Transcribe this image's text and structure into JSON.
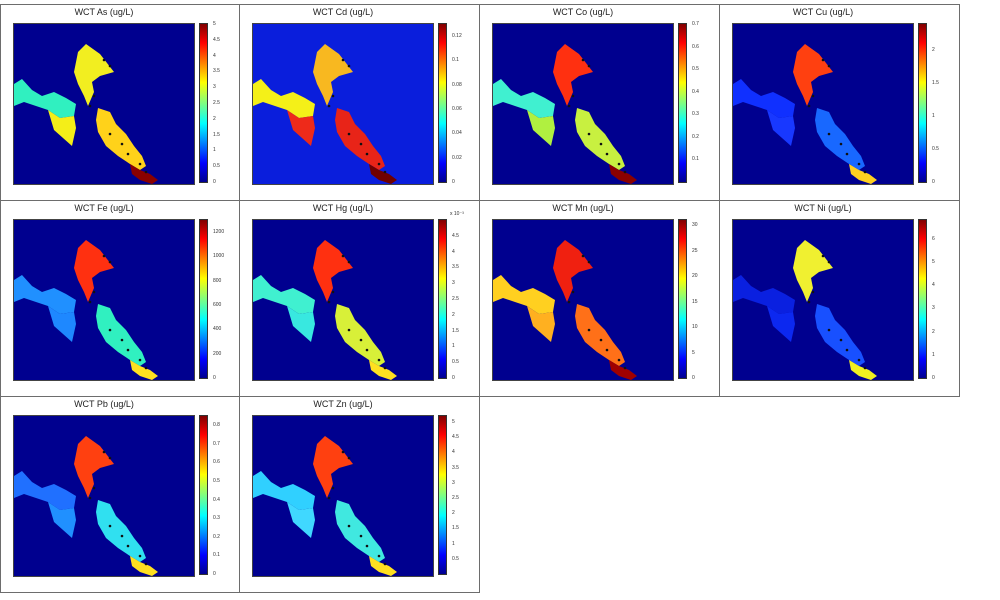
{
  "chart_data": [
    {
      "type": "heatmap",
      "title": "WCT As (ug/L)",
      "clim": [
        0,
        5
      ],
      "ticks": [
        "0",
        "0.5",
        "1",
        "1.5",
        "2",
        "2.5",
        "3",
        "3.5",
        "4",
        "4.5",
        "5"
      ],
      "tick_values": [
        0,
        0.5,
        1,
        1.5,
        2,
        2.5,
        3,
        3.5,
        4,
        4.5,
        5
      ],
      "tick_exponent": "",
      "background": "#00008f",
      "zone_colors": {
        "west_channel": "#30f0c0",
        "west_lobe": "#f4ee18",
        "north_basin": "#f2ee20",
        "south_basin": "#ffd21a",
        "outlet": "#8a0000"
      }
    },
    {
      "type": "heatmap",
      "title": "WCT Cd (ug/L)",
      "clim": [
        0,
        0.13
      ],
      "ticks": [
        "0",
        "0.02",
        "0.04",
        "0.06",
        "0.08",
        "0.1",
        "0.12"
      ],
      "tick_values": [
        0,
        0.02,
        0.04,
        0.06,
        0.08,
        0.1,
        0.12
      ],
      "tick_exponent": "",
      "background": "#0a1edc",
      "zone_colors": {
        "west_channel": "#f4f018",
        "west_lobe": "#ee2a1a",
        "north_basin": "#f8b820",
        "south_basin": "#e82418",
        "outlet": "#700000"
      }
    },
    {
      "type": "heatmap",
      "title": "WCT Co (ug/L)",
      "clim": [
        0,
        0.7
      ],
      "ticks": [
        "0.1",
        "0.2",
        "0.3",
        "0.4",
        "0.5",
        "0.6",
        "0.7"
      ],
      "tick_values": [
        0.1,
        0.2,
        0.3,
        0.4,
        0.5,
        0.6,
        0.7
      ],
      "tick_exponent": "",
      "background": "#00008f",
      "zone_colors": {
        "west_channel": "#40f0d0",
        "west_lobe": "#b0f040",
        "north_basin": "#ff3010",
        "south_basin": "#c8f040",
        "outlet": "#8a0000"
      }
    },
    {
      "type": "heatmap",
      "title": "WCT Cu (ug/L)",
      "clim": [
        0,
        2.4
      ],
      "ticks": [
        "0",
        "0.5",
        "1",
        "1.5",
        "2"
      ],
      "tick_values": [
        0,
        0.5,
        1,
        1.5,
        2
      ],
      "tick_exponent": "",
      "background": "#00008f",
      "zone_colors": {
        "west_channel": "#1030ff",
        "west_lobe": "#1838ff",
        "north_basin": "#ff4010",
        "south_basin": "#1868ff",
        "outlet": "#ffd020"
      }
    },
    {
      "type": "heatmap",
      "title": "WCT Fe (ug/L)",
      "clim": [
        0,
        1300
      ],
      "ticks": [
        "0",
        "200",
        "400",
        "600",
        "800",
        "1000",
        "1200"
      ],
      "tick_values": [
        0,
        200,
        400,
        600,
        800,
        1000,
        1200
      ],
      "tick_exponent": "",
      "background": "#00008f",
      "zone_colors": {
        "west_channel": "#2090ff",
        "west_lobe": "#1e88ff",
        "north_basin": "#ff3010",
        "south_basin": "#30f0c0",
        "outlet": "#ffe020"
      }
    },
    {
      "type": "heatmap",
      "title": "WCT Hg (ug/L)",
      "clim": [
        0,
        5
      ],
      "ticks": [
        "0",
        "0.5",
        "1",
        "1.5",
        "2",
        "2.5",
        "3",
        "3.5",
        "4",
        "4.5"
      ],
      "tick_values": [
        0,
        0.5,
        1,
        1.5,
        2,
        2.5,
        3,
        3.5,
        4,
        4.5
      ],
      "tick_exponent": "x 10⁻³",
      "background": "#00008f",
      "zone_colors": {
        "west_channel": "#40f0d0",
        "west_lobe": "#38e8e0",
        "north_basin": "#ff3010",
        "south_basin": "#d8f038",
        "outlet": "#ffe020"
      }
    },
    {
      "type": "heatmap",
      "title": "WCT Mn (ug/L)",
      "clim": [
        0,
        31
      ],
      "ticks": [
        "0",
        "5",
        "10",
        "15",
        "20",
        "25",
        "30"
      ],
      "tick_values": [
        0,
        5,
        10,
        15,
        20,
        25,
        30
      ],
      "tick_exponent": "",
      "background": "#00008f",
      "zone_colors": {
        "west_channel": "#ffd020",
        "west_lobe": "#ffb020",
        "north_basin": "#f02010",
        "south_basin": "#ff7018",
        "outlet": "#a00000"
      }
    },
    {
      "type": "heatmap",
      "title": "WCT Ni (ug/L)",
      "clim": [
        0,
        6.8
      ],
      "ticks": [
        "0",
        "1",
        "2",
        "3",
        "4",
        "5",
        "6"
      ],
      "tick_values": [
        0,
        1,
        2,
        3,
        4,
        5,
        6
      ],
      "tick_exponent": "",
      "background": "#00008f",
      "zone_colors": {
        "west_channel": "#0a20e0",
        "west_lobe": "#0c28f0",
        "north_basin": "#f0f030",
        "south_basin": "#1850ff",
        "outlet": "#f0f020"
      }
    },
    {
      "type": "heatmap",
      "title": "WCT Pb (ug/L)",
      "clim": [
        0,
        0.85
      ],
      "ticks": [
        "0",
        "0.1",
        "0.2",
        "0.3",
        "0.4",
        "0.5",
        "0.6",
        "0.7",
        "0.8"
      ],
      "tick_values": [
        0,
        0.1,
        0.2,
        0.3,
        0.4,
        0.5,
        0.6,
        0.7,
        0.8
      ],
      "tick_exponent": "",
      "background": "#00008f",
      "zone_colors": {
        "west_channel": "#2070ff",
        "west_lobe": "#2090ff",
        "north_basin": "#ff4010",
        "south_basin": "#30e0f0",
        "outlet": "#ffe020"
      }
    },
    {
      "type": "heatmap",
      "title": "WCT Zn (ug/L)",
      "clim": [
        0,
        5.2
      ],
      "ticks": [
        "0.5",
        "1",
        "1.5",
        "2",
        "2.5",
        "3",
        "3.5",
        "4",
        "4.5",
        "5"
      ],
      "tick_values": [
        0.5,
        1,
        1.5,
        2,
        2.5,
        3,
        3.5,
        4,
        4.5,
        5
      ],
      "tick_exponent": "",
      "background": "#00008f",
      "zone_colors": {
        "west_channel": "#30d0ff",
        "west_lobe": "#40d8ff",
        "north_basin": "#ff4010",
        "south_basin": "#40e8e0",
        "outlet": "#ffe020"
      }
    }
  ]
}
